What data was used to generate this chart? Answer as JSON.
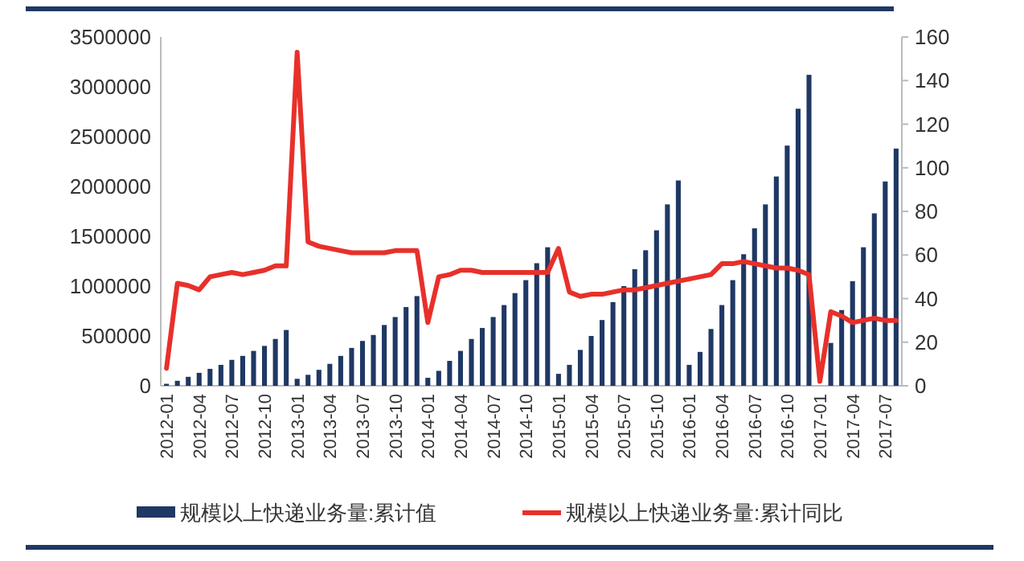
{
  "chart_data": {
    "type": "bar",
    "categories": [
      "2012-01",
      null,
      null,
      "2012-04",
      null,
      null,
      "2012-07",
      null,
      null,
      "2012-10",
      null,
      null,
      "2013-01",
      null,
      null,
      "2013-04",
      null,
      null,
      "2013-07",
      null,
      null,
      "2013-10",
      null,
      null,
      "2014-01",
      null,
      null,
      "2014-04",
      null,
      null,
      "2014-07",
      null,
      null,
      "2014-10",
      null,
      null,
      "2015-01",
      null,
      null,
      "2015-04",
      null,
      null,
      "2015-07",
      null,
      null,
      "2015-10",
      null,
      null,
      "2016-01",
      null,
      null,
      "2016-04",
      null,
      null,
      "2016-07",
      null,
      null,
      "2016-10",
      null,
      null,
      "2017-01",
      null,
      null,
      "2017-04",
      null,
      null,
      "2017-07",
      null
    ],
    "series": [
      {
        "name": "规模以上快递业务量:累计值",
        "color": "#1f3864",
        "values": [
          20000,
          50000,
          90000,
          130000,
          170000,
          210000,
          260000,
          300000,
          350000,
          400000,
          470000,
          560000,
          70000,
          110000,
          160000,
          220000,
          300000,
          380000,
          450000,
          510000,
          610000,
          690000,
          790000,
          900000,
          80000,
          150000,
          250000,
          350000,
          470000,
          580000,
          690000,
          810000,
          930000,
          1060000,
          1230000,
          1390000,
          120000,
          210000,
          360000,
          500000,
          660000,
          840000,
          1000000,
          1170000,
          1360000,
          1560000,
          1820000,
          2060000,
          210000,
          340000,
          570000,
          810000,
          1060000,
          1320000,
          1580000,
          1820000,
          2100000,
          2410000,
          2780000,
          3120000,
          null,
          430000,
          760000,
          1050000,
          1390000,
          1730000,
          2050000,
          2380000
        ]
      },
      {
        "name": "规模以上快递业务量:累计同比",
        "type": "line",
        "axis": "y2",
        "color": "#e8302a",
        "values": [
          8,
          47,
          46,
          44,
          50,
          51,
          52,
          51,
          52,
          53,
          55,
          55,
          153,
          66,
          64,
          63,
          62,
          61,
          61,
          61,
          61,
          62,
          62,
          62,
          29,
          50,
          51,
          53,
          53,
          52,
          52,
          52,
          52,
          52,
          52,
          52,
          63,
          43,
          41,
          42,
          42,
          43,
          44,
          44,
          45,
          46,
          47,
          48,
          49,
          50,
          51,
          56,
          56,
          57,
          56,
          55,
          54,
          54,
          53,
          51,
          2,
          34,
          32,
          29,
          30,
          31,
          30,
          30
        ]
      }
    ],
    "ylim": [
      0,
      3500000
    ],
    "yticks": [
      0,
      500000,
      1000000,
      1500000,
      2000000,
      2500000,
      3000000,
      3500000
    ],
    "y2lim": [
      0,
      160
    ],
    "y2ticks": [
      0,
      20,
      40,
      60,
      80,
      100,
      120,
      140,
      160
    ],
    "grid": false,
    "legend": "bottom"
  }
}
